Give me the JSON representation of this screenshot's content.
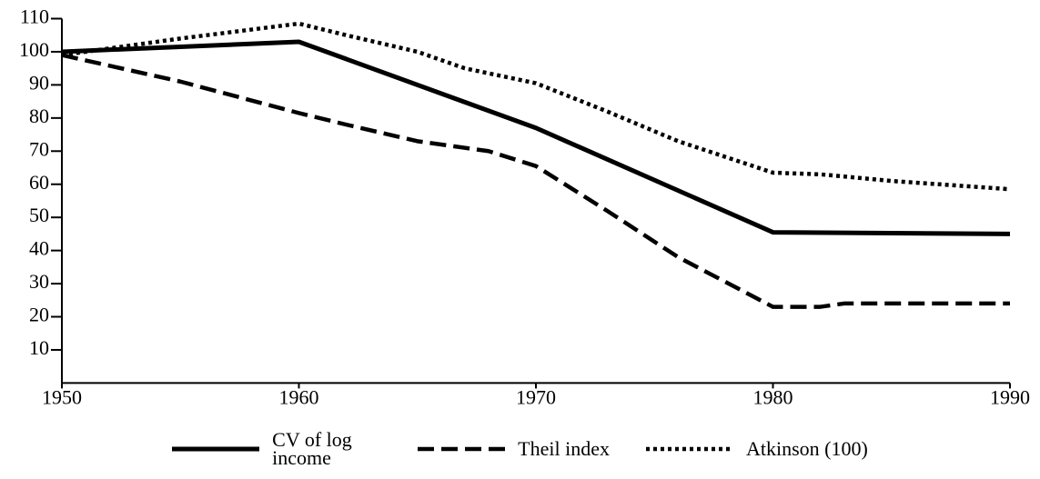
{
  "chart_data": {
    "type": "line",
    "xlim": [
      1950,
      1990
    ],
    "xticks": [
      1950,
      1960,
      1970,
      1980,
      1990
    ],
    "ylim": [
      0,
      110
    ],
    "yticks": [
      10,
      20,
      30,
      40,
      50,
      60,
      70,
      80,
      90,
      100,
      110
    ],
    "grid": false,
    "legend": "bottom",
    "series": [
      {
        "name": "CV of log income",
        "color": "#000000",
        "dash": "solid",
        "x": [
          1950,
          1960,
          1970,
          1980,
          1990
        ],
        "values": [
          100,
          103,
          77,
          45.5,
          45
        ]
      },
      {
        "name": "Theil index",
        "color": "#000000",
        "dash": "dashed",
        "x": [
          1950,
          1955,
          1960,
          1962,
          1965,
          1968,
          1970,
          1973,
          1976,
          1980,
          1982,
          1983,
          1988,
          1990
        ],
        "values": [
          99,
          91,
          81.5,
          78,
          73,
          70,
          65.5,
          52,
          38,
          23,
          23,
          24,
          24,
          24
        ]
      },
      {
        "name": "Atkinson (100)",
        "color": "#000000",
        "dash": "dotted",
        "x": [
          1950,
          1955,
          1960,
          1962,
          1965,
          1967,
          1970,
          1973,
          1976,
          1980,
          1982,
          1985,
          1990
        ],
        "values": [
          99,
          104,
          108.5,
          105,
          100,
          95,
          90.5,
          82,
          73,
          63.5,
          63,
          61,
          58.5
        ]
      }
    ]
  }
}
